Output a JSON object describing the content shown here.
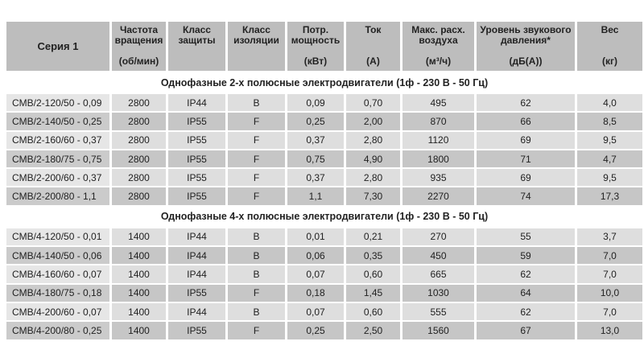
{
  "headers": [
    {
      "title": "Серия 1",
      "unit": ""
    },
    {
      "title": "Частота вращения",
      "unit": "(об/мин)"
    },
    {
      "title": "Класс защиты",
      "unit": ""
    },
    {
      "title": "Класс изоляции",
      "unit": ""
    },
    {
      "title": "Потр. мощность",
      "unit": "(кВт)"
    },
    {
      "title": "Ток",
      "unit": "(A)"
    },
    {
      "title": "Макс. расх. воздуха",
      "unit": "(м³/ч)"
    },
    {
      "title": "Уровень звукового давления*",
      "unit": "(дБ(A))"
    },
    {
      "title": "Вес",
      "unit": "(кг)"
    }
  ],
  "sections": [
    {
      "title": "Однофазные 2-х полюсные электродвигатели (1ф - 230 В - 50 Гц)",
      "rows": [
        [
          "CMB/2-120/50 - 0,09",
          "2800",
          "IP44",
          "B",
          "0,09",
          "0,70",
          "495",
          "62",
          "4,0"
        ],
        [
          "CMB/2-140/50 - 0,25",
          "2800",
          "IP55",
          "F",
          "0,25",
          "2,00",
          "870",
          "66",
          "8,5"
        ],
        [
          "CMB/2-160/60 - 0,37",
          "2800",
          "IP55",
          "F",
          "0,37",
          "2,80",
          "1120",
          "69",
          "9,5"
        ],
        [
          "CMB/2-180/75 - 0,75",
          "2800",
          "IP55",
          "F",
          "0,75",
          "4,90",
          "1800",
          "71",
          "4,7"
        ],
        [
          "CMB/2-200/60 - 0,37",
          "2800",
          "IP55",
          "F",
          "0,37",
          "2,80",
          "935",
          "69",
          "9,5"
        ],
        [
          "CMB/2-200/80 - 1,1",
          "2800",
          "IP55",
          "F",
          "1,1",
          "7,30",
          "2270",
          "74",
          "17,3"
        ]
      ]
    },
    {
      "title": "Однофазные 4-х полюсные электродвигатели (1ф - 230 В - 50 Гц)",
      "rows": [
        [
          "CMB/4-120/50 - 0,01",
          "1400",
          "IP44",
          "B",
          "0,01",
          "0,21",
          "270",
          "55",
          "3,7"
        ],
        [
          "CMB/4-140/50 - 0,06",
          "1400",
          "IP44",
          "B",
          "0,06",
          "0,35",
          "450",
          "59",
          "7,0"
        ],
        [
          "CMB/4-160/60 - 0,07",
          "1400",
          "IP44",
          "B",
          "0,07",
          "0,60",
          "665",
          "62",
          "7,0"
        ],
        [
          "CMB/4-180/75 - 0,18",
          "1400",
          "IP55",
          "F",
          "0,18",
          "1,45",
          "1030",
          "64",
          "10,0"
        ],
        [
          "CMB/4-200/60 - 0,07",
          "1400",
          "IP44",
          "B",
          "0,07",
          "0,60",
          "555",
          "62",
          "7,0"
        ],
        [
          "CMB/4-200/80 - 0,25",
          "1400",
          "IP55",
          "F",
          "0,25",
          "2,50",
          "1560",
          "67",
          "13,0"
        ]
      ]
    }
  ]
}
